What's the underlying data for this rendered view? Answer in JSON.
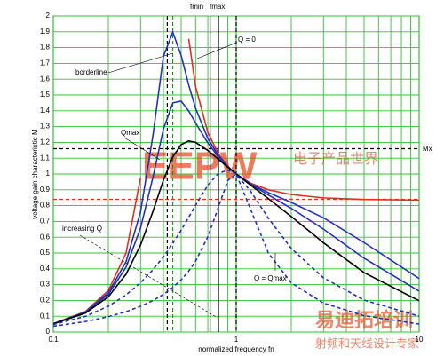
{
  "chart_data": {
    "type": "line",
    "x_label": "normalized frequency fn",
    "y_label": "voltage gain characteristic M",
    "xscale": "log",
    "xlim": [
      0.1,
      10
    ],
    "xticks": [
      0.1,
      1,
      10
    ],
    "ylim": [
      0,
      2
    ],
    "yticks": [
      0,
      0.1,
      0.2,
      0.3,
      0.4,
      0.5,
      0.6,
      0.7,
      0.8,
      0.9,
      1,
      1.1,
      1.2,
      1.3,
      1.4,
      1.5,
      1.6,
      1.7,
      1.8,
      1.9,
      2
    ],
    "grid": true,
    "grid_color": "#33c033",
    "x": [
      0.1,
      0.15,
      0.2,
      0.25,
      0.3,
      0.35,
      0.4,
      0.45,
      0.5,
      0.55,
      0.6,
      0.7,
      0.8,
      0.9,
      1,
      1.2,
      1.5,
      2,
      3,
      5,
      10
    ],
    "series": [
      {
        "color": "#e03020",
        "dashed": false,
        "values": [
          0.053,
          0.13,
          0.263,
          0.5,
          0.978,
          null,
          null,
          null,
          null,
          1.856,
          1.552,
          1.263,
          1.127,
          1.049,
          1,
          0.942,
          0.9,
          0.87,
          0.849,
          0.839,
          0.835
        ]
      },
      {
        "color": "#2233bb",
        "dashed": false,
        "values": [
          0.0527,
          0.1267,
          0.2489,
          0.4454,
          0.7613,
          1.238,
          1.744,
          1.898,
          1.75,
          1.563,
          1.415,
          1.225,
          1.116,
          1.047,
          1,
          0.938,
          0.882,
          0.82,
          0.723,
          0.566,
          0.339
        ]
      },
      {
        "color": "#2233bb",
        "dashed": false,
        "values": [
          0.0522,
          0.1241,
          0.2384,
          0.4108,
          0.6587,
          0.9767,
          1.284,
          1.45,
          1.461,
          1.399,
          1.323,
          1.196,
          1.107,
          1.046,
          1,
          0.935,
          0.867,
          0.783,
          0.651,
          0.467,
          0.259
        ]
      },
      {
        "color": "#000000",
        "dashed": false,
        "values": [
          0.0515,
          0.1199,
          0.2231,
          0.3665,
          0.5506,
          0.7609,
          0.9611,
          1.108,
          1.186,
          1.209,
          1.2,
          1.149,
          1.093,
          1.043,
          1,
          0.929,
          0.844,
          0.731,
          0.565,
          0.376,
          0.198
        ]
      },
      {
        "color": "#2233bb",
        "dashed": true,
        "values": [
          0.0471,
          0.0992,
          0.1633,
          0.2353,
          0.3125,
          0.3931,
          0.4761,
          0.5603,
          0.6442,
          0.7259,
          0.8024,
          0.9293,
          1.005,
          1.024,
          1,
          0.8907,
          0.72,
          0.529,
          0.343,
          0.202,
          0.1003
        ]
      },
      {
        "color": "#2233bb",
        "dashed": true,
        "values": [
          0.0366,
          0.0661,
          0.0969,
          0.1288,
          0.1626,
          0.1987,
          0.2381,
          0.2816,
          0.3304,
          0.3857,
          0.4487,
          0.6029,
          0.7911,
          0.9593,
          1,
          0.7752,
          0.4992,
          0.3113,
          0.1831,
          0.1034,
          0.0504
        ]
      }
    ],
    "vlines": [
      {
        "x": 0.42,
        "color": "#000000",
        "dashed": true
      },
      {
        "x": 0.45,
        "color": "#1a9a1a",
        "dashed": true
      },
      {
        "x": 0.72,
        "color": "#000000",
        "dashed": false
      },
      {
        "x": 0.8,
        "color": "#000000",
        "dashed": false
      },
      {
        "x": 1,
        "color": "#000000",
        "dashed": true
      }
    ],
    "hlines": [
      {
        "y": 1.16,
        "color": "#000000",
        "dashed": true
      },
      {
        "y": 0.84,
        "color": "#e03020",
        "dashed": true
      }
    ],
    "annotations": [
      "fmin",
      "fmax",
      "Q = 0",
      "borderline",
      "Qmax",
      "Mx",
      "increasing Q",
      "Q = Qmax"
    ],
    "watermarks": [
      "EEPW",
      "电子产品世界",
      "易迪拓培训",
      "射频和天线设计专家"
    ]
  }
}
